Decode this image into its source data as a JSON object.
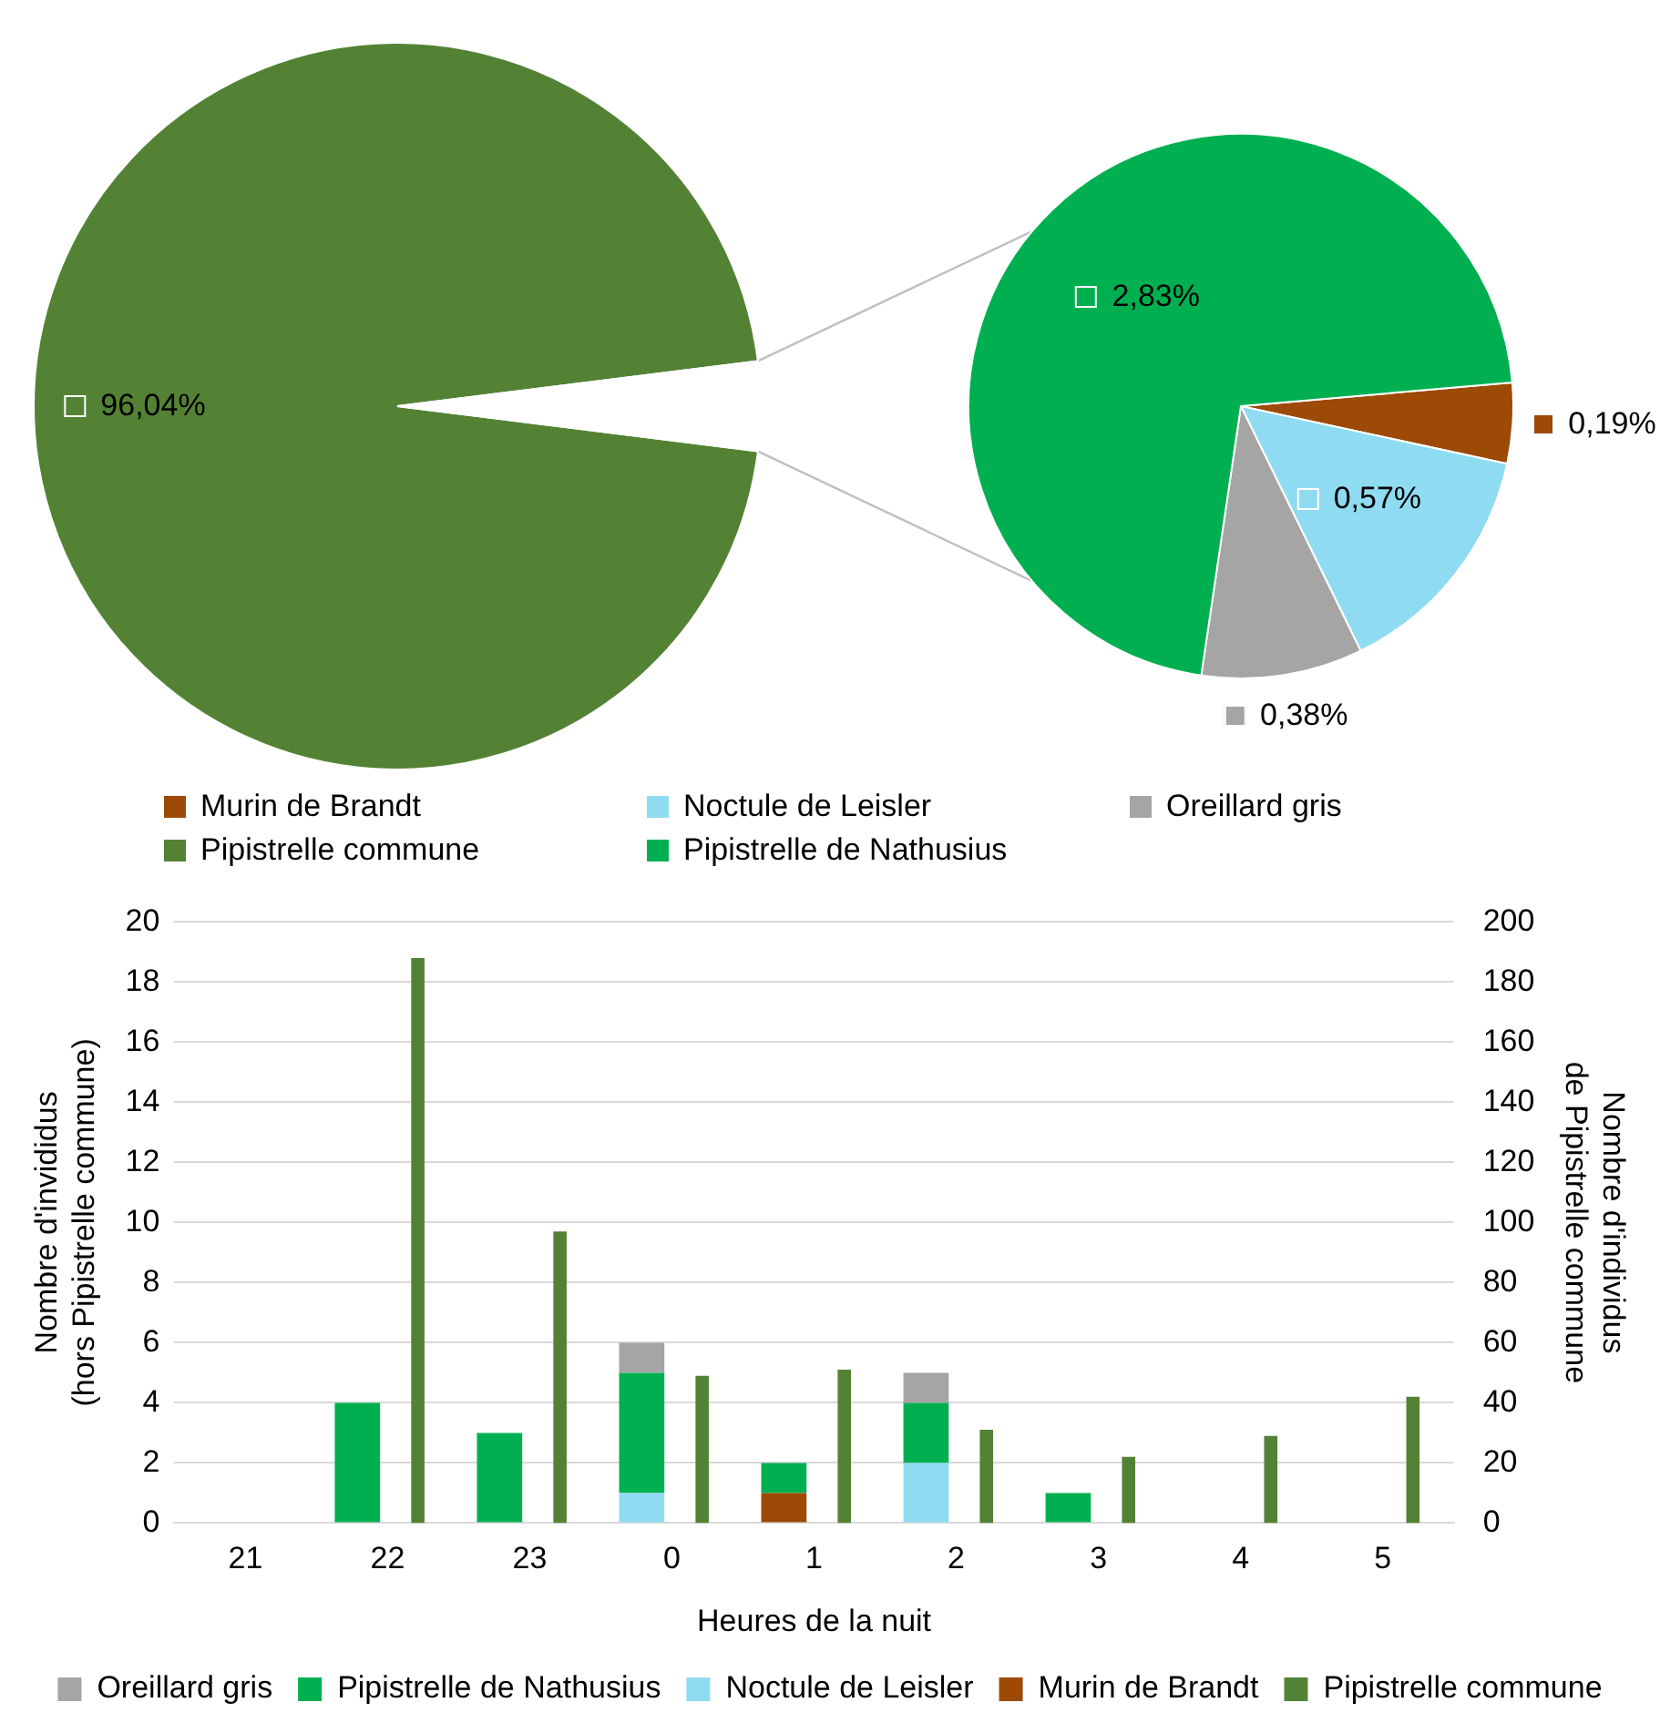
{
  "chart_data": [
    {
      "type": "pie",
      "categories": [
        "Pipistrelle commune",
        null
      ],
      "values": [
        96.04,
        3.96
      ],
      "colors": [
        "#548235",
        "#ffffff"
      ],
      "value_labels": [
        "96,04%",
        null
      ],
      "legend": "bottom"
    },
    {
      "type": "pie",
      "categories": [
        "Murin de Brandt",
        "Noctule de Leisler",
        "Oreillard gris",
        "Pipistrelle de Nathusius"
      ],
      "values": [
        0.19,
        0.57,
        0.38,
        2.83
      ],
      "colors": [
        "#9c4a06",
        "#8fdcf2",
        "#a5a5a5",
        "#00b050"
      ],
      "value_labels": [
        "0,19%",
        "0,57%",
        "0,38%",
        "2,83%"
      ],
      "legend": "bottom"
    },
    {
      "type": "bar",
      "categories": [
        "21",
        "22",
        "23",
        "0",
        "1",
        "2",
        "3",
        "4",
        "5"
      ],
      "stacked": true,
      "xlabel": "Heures de la nuit",
      "ylabel": "Nombre d'invididus\n(hors Pipistrelle commune)",
      "y2label": "Nombre d'individus\nde Pipistrelle commune",
      "ylim": [
        0,
        20
      ],
      "yticks": [
        0,
        2,
        4,
        6,
        8,
        10,
        12,
        14,
        16,
        18,
        20
      ],
      "y2lim": [
        0,
        200
      ],
      "y2ticks": [
        0,
        20,
        40,
        60,
        80,
        100,
        120,
        140,
        160,
        180,
        200
      ],
      "grid": "y",
      "legend": "bottom",
      "series": [
        {
          "name": "Murin de Brandt",
          "color": "#9c4a06",
          "values": [
            0,
            0,
            0,
            0,
            1,
            0,
            0,
            0,
            0
          ]
        },
        {
          "name": "Noctule de Leisler",
          "color": "#8fdcf2",
          "values": [
            0,
            0,
            0,
            1,
            0,
            2,
            0,
            0,
            0
          ]
        },
        {
          "name": "Pipistrelle de Nathusius",
          "color": "#00b050",
          "values": [
            0,
            4,
            3,
            4,
            1,
            2,
            1,
            0,
            0
          ]
        },
        {
          "name": "Oreillard gris",
          "color": "#a5a5a5",
          "values": [
            0,
            0,
            0,
            1,
            0,
            1,
            0,
            0,
            0
          ]
        },
        {
          "name": "Pipistrelle commune",
          "color": "#548235",
          "axis": "y2",
          "values": [
            0,
            188,
            97,
            49,
            51,
            31,
            22,
            29,
            42
          ]
        }
      ]
    }
  ]
}
